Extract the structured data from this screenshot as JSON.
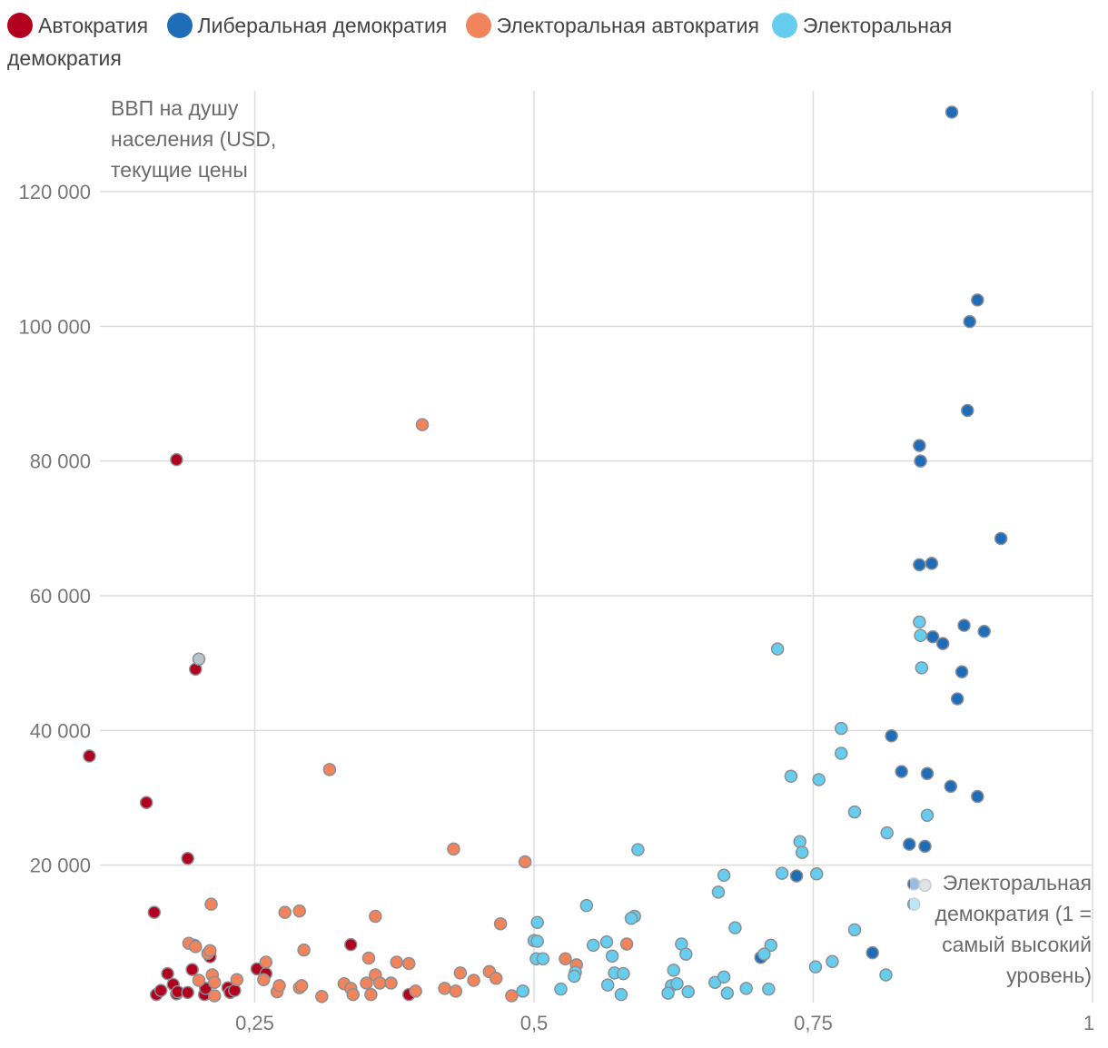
{
  "legend": {
    "items": [
      {
        "label": "Автократия",
        "color": "#b2001f"
      },
      {
        "label": "Либеральная демократия",
        "color": "#1f6cb8"
      },
      {
        "label": "Электоральная автократия",
        "color": "#f2845c"
      },
      {
        "label": "Электоральная",
        "label_cont": "демократия",
        "color": "#66cdee"
      }
    ]
  },
  "chart_data": {
    "type": "scatter",
    "title": "",
    "ylabel": "ВВП на душу населения (USD, текущие цены",
    "xlabel": "Электоральная демократия (1 = самый высокий уровень)",
    "xlim": [
      0.1,
      1.0
    ],
    "ylim": [
      0,
      135000
    ],
    "x_ticks": [
      0.25,
      0.5,
      0.75,
      1.0
    ],
    "x_tick_labels": [
      "0,25",
      "0,5",
      "0,75",
      "1"
    ],
    "y_ticks": [
      20000,
      40000,
      60000,
      80000,
      100000,
      120000
    ],
    "y_tick_labels": [
      "20 000",
      "40 000",
      "60 000",
      "80 000",
      "100 000",
      "120 000"
    ],
    "grid": true,
    "legend_position": "top",
    "colors": {
      "autocracy": "#b2001f",
      "liberal": "#1f6cb8",
      "el_autocracy": "#f2845c",
      "el_democracy": "#66cdee",
      "no_data": "#b9c4cc"
    },
    "series": [
      {
        "name": "Автократия",
        "key": "autocracy",
        "points": [
          [
            0.102,
            36200
          ],
          [
            0.16,
            13000
          ],
          [
            0.18,
            80200
          ],
          [
            0.197,
            49100
          ],
          [
            0.153,
            29300
          ],
          [
            0.19,
            21000
          ],
          [
            0.162,
            800
          ],
          [
            0.166,
            1400
          ],
          [
            0.172,
            3900
          ],
          [
            0.177,
            2300
          ],
          [
            0.18,
            900
          ],
          [
            0.181,
            1200
          ],
          [
            0.19,
            1100
          ],
          [
            0.194,
            4500
          ],
          [
            0.196,
            8100
          ],
          [
            0.205,
            800
          ],
          [
            0.206,
            1700
          ],
          [
            0.21,
            6400
          ],
          [
            0.226,
            1800
          ],
          [
            0.228,
            1100
          ],
          [
            0.232,
            1400
          ],
          [
            0.252,
            4600
          ],
          [
            0.26,
            3900
          ],
          [
            0.336,
            8200
          ],
          [
            0.388,
            800
          ]
        ]
      },
      {
        "name": "Либеральная демократия",
        "key": "liberal",
        "points": [
          [
            0.874,
            131800
          ],
          [
            0.897,
            103900
          ],
          [
            0.89,
            100700
          ],
          [
            0.888,
            87500
          ],
          [
            0.845,
            82300
          ],
          [
            0.846,
            80000
          ],
          [
            0.918,
            68500
          ],
          [
            0.845,
            64600
          ],
          [
            0.856,
            64800
          ],
          [
            0.885,
            55600
          ],
          [
            0.903,
            54700
          ],
          [
            0.857,
            53900
          ],
          [
            0.866,
            52900
          ],
          [
            0.883,
            48700
          ],
          [
            0.879,
            44700
          ],
          [
            0.82,
            39200
          ],
          [
            0.829,
            33900
          ],
          [
            0.852,
            33600
          ],
          [
            0.873,
            31700
          ],
          [
            0.897,
            30200
          ],
          [
            0.836,
            23100
          ],
          [
            0.85,
            22800
          ],
          [
            0.84,
            17200
          ],
          [
            0.735,
            18400
          ],
          [
            0.803,
            7000
          ],
          [
            0.703,
            6300
          ]
        ]
      },
      {
        "name": "Электоральная автократия",
        "key": "el_autocracy",
        "points": [
          [
            0.4,
            85400
          ],
          [
            0.317,
            34200
          ],
          [
            0.428,
            22400
          ],
          [
            0.492,
            20500
          ],
          [
            0.211,
            14200
          ],
          [
            0.277,
            13000
          ],
          [
            0.29,
            13200
          ],
          [
            0.358,
            12400
          ],
          [
            0.47,
            11300
          ],
          [
            0.191,
            8400
          ],
          [
            0.197,
            7900
          ],
          [
            0.208,
            6900
          ],
          [
            0.21,
            7300
          ],
          [
            0.294,
            7400
          ],
          [
            0.352,
            6200
          ],
          [
            0.377,
            5600
          ],
          [
            0.388,
            5400
          ],
          [
            0.538,
            5200
          ],
          [
            0.583,
            8300
          ],
          [
            0.528,
            6100
          ],
          [
            0.26,
            5600
          ],
          [
            0.258,
            3000
          ],
          [
            0.2,
            2900
          ],
          [
            0.212,
            3700
          ],
          [
            0.214,
            2600
          ],
          [
            0.214,
            600
          ],
          [
            0.234,
            3000
          ],
          [
            0.27,
            1200
          ],
          [
            0.272,
            2100
          ],
          [
            0.29,
            1800
          ],
          [
            0.292,
            2100
          ],
          [
            0.31,
            500
          ],
          [
            0.33,
            2400
          ],
          [
            0.336,
            1700
          ],
          [
            0.338,
            800
          ],
          [
            0.35,
            2500
          ],
          [
            0.354,
            800
          ],
          [
            0.358,
            3700
          ],
          [
            0.362,
            2500
          ],
          [
            0.372,
            2500
          ],
          [
            0.394,
            1300
          ],
          [
            0.42,
            1700
          ],
          [
            0.43,
            1300
          ],
          [
            0.434,
            4000
          ],
          [
            0.446,
            2900
          ],
          [
            0.46,
            4200
          ],
          [
            0.466,
            3200
          ],
          [
            0.48,
            600
          ],
          [
            0.49,
            1300
          ]
        ]
      },
      {
        "name": "Электоральная демократия",
        "key": "el_democracy",
        "points": [
          [
            0.718,
            52100
          ],
          [
            0.775,
            40300
          ],
          [
            0.775,
            36600
          ],
          [
            0.73,
            33200
          ],
          [
            0.755,
            32700
          ],
          [
            0.787,
            27900
          ],
          [
            0.816,
            24800
          ],
          [
            0.852,
            27400
          ],
          [
            0.845,
            56100
          ],
          [
            0.846,
            54100
          ],
          [
            0.847,
            49300
          ],
          [
            0.738,
            23500
          ],
          [
            0.74,
            21900
          ],
          [
            0.593,
            22300
          ],
          [
            0.722,
            18800
          ],
          [
            0.753,
            18700
          ],
          [
            0.67,
            18500
          ],
          [
            0.665,
            16000
          ],
          [
            0.84,
            14200
          ],
          [
            0.547,
            14000
          ],
          [
            0.503,
            11500
          ],
          [
            0.59,
            12400
          ],
          [
            0.587,
            12100
          ],
          [
            0.68,
            10700
          ],
          [
            0.787,
            10400
          ],
          [
            0.5,
            8800
          ],
          [
            0.503,
            8700
          ],
          [
            0.565,
            8600
          ],
          [
            0.553,
            8100
          ],
          [
            0.632,
            8300
          ],
          [
            0.712,
            8100
          ],
          [
            0.502,
            6100
          ],
          [
            0.508,
            6100
          ],
          [
            0.57,
            6500
          ],
          [
            0.636,
            6800
          ],
          [
            0.706,
            6800
          ],
          [
            0.767,
            5700
          ],
          [
            0.752,
            4900
          ],
          [
            0.572,
            4000
          ],
          [
            0.58,
            3900
          ],
          [
            0.625,
            4400
          ],
          [
            0.537,
            4100
          ],
          [
            0.536,
            3500
          ],
          [
            0.566,
            2200
          ],
          [
            0.623,
            2100
          ],
          [
            0.628,
            2400
          ],
          [
            0.662,
            2600
          ],
          [
            0.67,
            3400
          ],
          [
            0.524,
            1600
          ],
          [
            0.49,
            1300
          ],
          [
            0.62,
            1000
          ],
          [
            0.638,
            1200
          ],
          [
            0.673,
            1000
          ],
          [
            0.69,
            1700
          ],
          [
            0.71,
            1600
          ],
          [
            0.578,
            800
          ],
          [
            0.815,
            3700
          ]
        ]
      },
      {
        "name": "",
        "key": "no_data",
        "points": [
          [
            0.2,
            50600
          ],
          [
            0.85,
            17000
          ]
        ]
      }
    ]
  }
}
